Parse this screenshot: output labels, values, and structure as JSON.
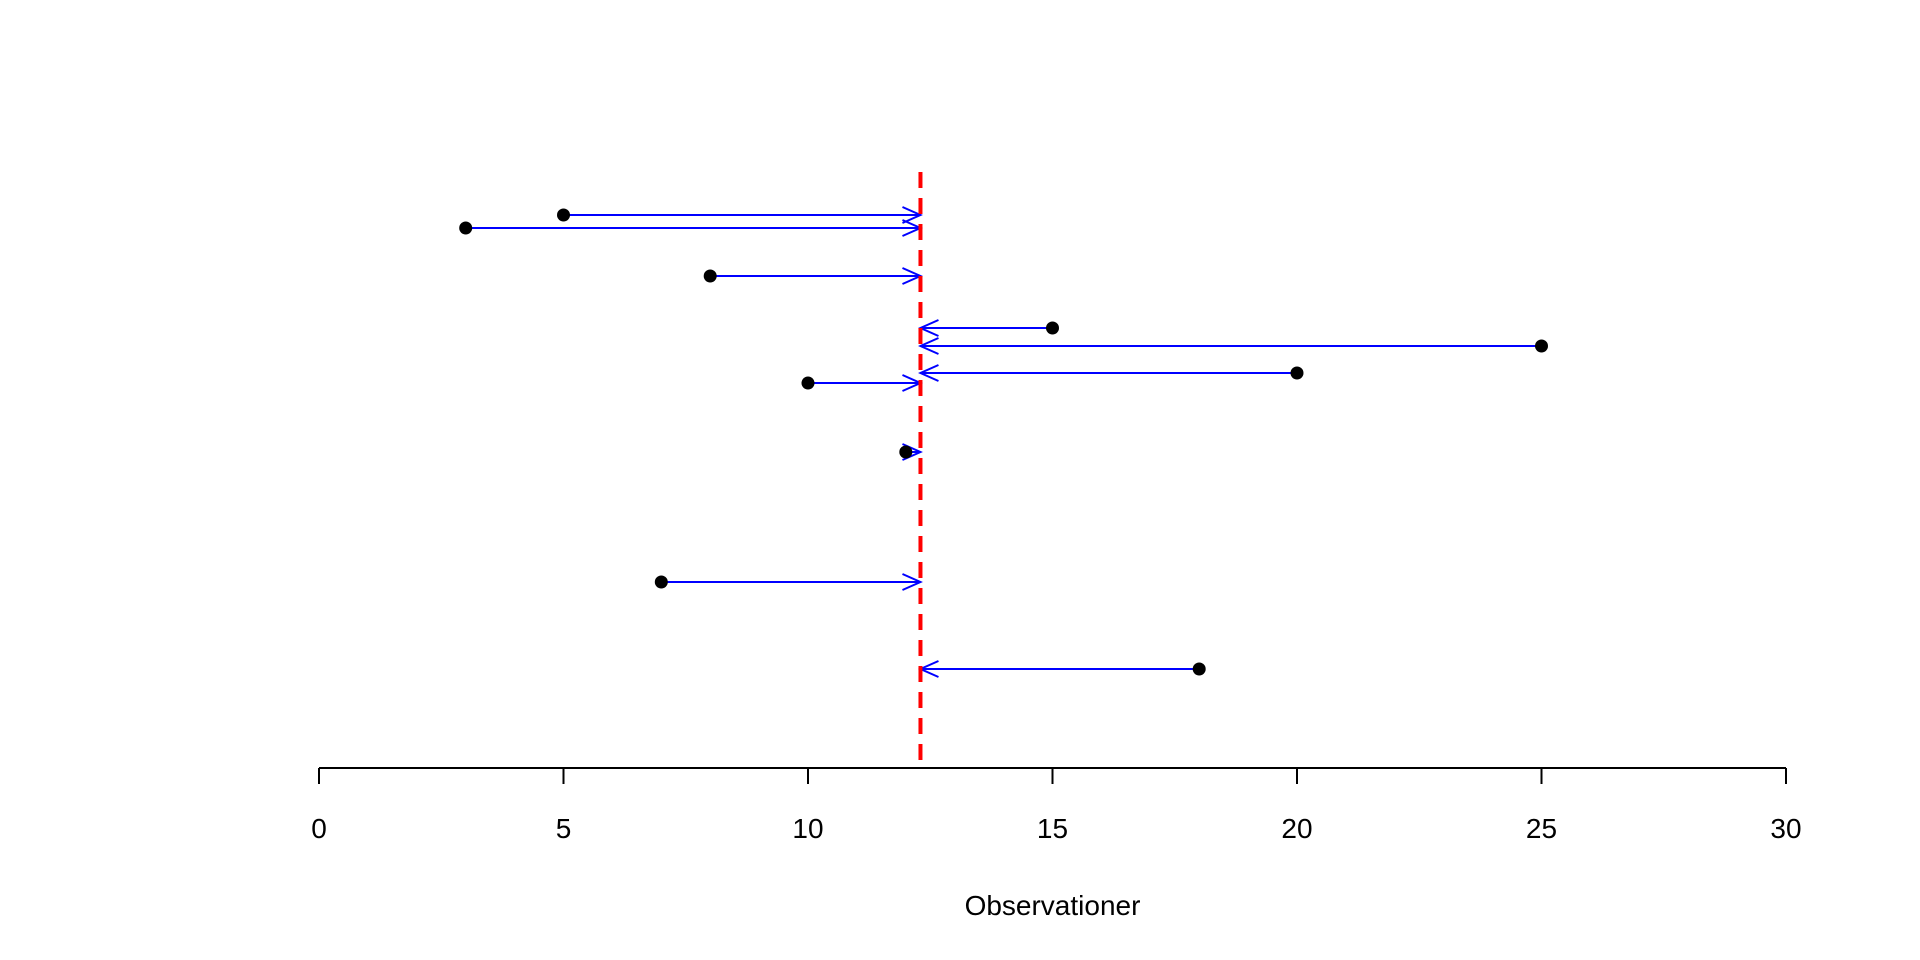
{
  "chart_data": {
    "type": "scatter",
    "title": "",
    "xlabel": "Observationer",
    "ylabel": "",
    "xlim": [
      0,
      30
    ],
    "x_ticks": [
      "0",
      "5",
      "10",
      "15",
      "20",
      "25",
      "30"
    ],
    "x_tick_values": [
      0,
      5,
      10,
      15,
      20,
      25,
      30
    ],
    "y_axis_shown": false,
    "grid": false,
    "reference_line": {
      "x": 12.3,
      "color": "#ff0000",
      "style": "dashed"
    },
    "arrow_color": "#0000ff",
    "point_color": "#000000",
    "points": [
      {
        "x": 5,
        "row": 1
      },
      {
        "x": 3,
        "row": 2
      },
      {
        "x": 8,
        "row": 3
      },
      {
        "x": 15,
        "row": 4
      },
      {
        "x": 25,
        "row": 5
      },
      {
        "x": 20,
        "row": 6
      },
      {
        "x": 10,
        "row": 7
      },
      {
        "x": 12,
        "row": 8
      },
      {
        "x": 7,
        "row": 9
      },
      {
        "x": 18,
        "row": 10
      }
    ]
  }
}
